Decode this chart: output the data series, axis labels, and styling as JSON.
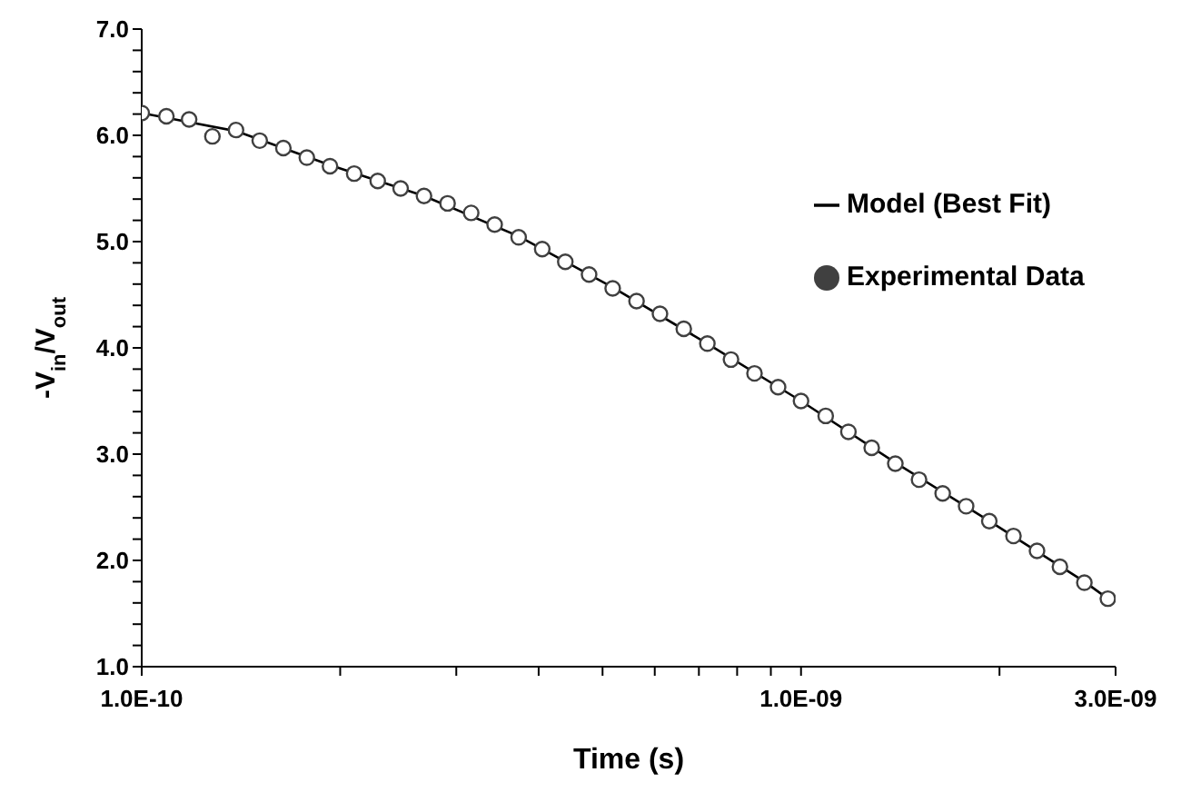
{
  "chart_data": {
    "type": "scatter",
    "xlabel": "Time (s)",
    "ylabel": "-V$_{in}$/V$_{out}$",
    "log": "x",
    "legend": "right",
    "grid": false,
    "marker": "circle",
    "xlim": [
      1e-10,
      3e-09
    ],
    "xticks": [
      {
        "value": 1e-10,
        "label": "1.0E-10"
      },
      {
        "value": 2e-10,
        "label": null
      },
      {
        "value": 3e-10,
        "label": null
      },
      {
        "value": 4e-10,
        "label": null
      },
      {
        "value": 5e-10,
        "label": null
      },
      {
        "value": 6e-10,
        "label": null
      },
      {
        "value": 7e-10,
        "label": null
      },
      {
        "value": 8e-10,
        "label": null
      },
      {
        "value": 9e-10,
        "label": null
      },
      {
        "value": 1e-09,
        "label": "1.0E-09"
      },
      {
        "value": 2e-09,
        "label": null
      },
      {
        "value": 3e-09,
        "label": "3.0E-09"
      }
    ],
    "ylim": [
      1,
      7
    ],
    "yticks": [
      {
        "value": 1,
        "label": "1.0"
      },
      {
        "value": 1.2,
        "label": null
      },
      {
        "value": 1.4,
        "label": null
      },
      {
        "value": 1.6,
        "label": null
      },
      {
        "value": 1.8,
        "label": null
      },
      {
        "value": 2,
        "label": "2.0"
      },
      {
        "value": 2.2,
        "label": null
      },
      {
        "value": 2.4,
        "label": null
      },
      {
        "value": 2.6,
        "label": null
      },
      {
        "value": 2.8,
        "label": null
      },
      {
        "value": 3,
        "label": "3.0"
      },
      {
        "value": 3.2,
        "label": null
      },
      {
        "value": 3.4,
        "label": null
      },
      {
        "value": 3.6,
        "label": null
      },
      {
        "value": 3.8,
        "label": null
      },
      {
        "value": 4,
        "label": "4.0"
      },
      {
        "value": 4.2,
        "label": null
      },
      {
        "value": 4.4,
        "label": null
      },
      {
        "value": 4.6,
        "label": null
      },
      {
        "value": 4.8,
        "label": null
      },
      {
        "value": 5,
        "label": "5.0"
      },
      {
        "value": 5.2,
        "label": null
      },
      {
        "value": 5.4,
        "label": null
      },
      {
        "value": 5.6,
        "label": null
      },
      {
        "value": 5.8,
        "label": null
      },
      {
        "value": 6,
        "label": "6.0"
      },
      {
        "value": 6.2,
        "label": null
      },
      {
        "value": 6.4,
        "label": null
      },
      {
        "value": 6.6,
        "label": null
      },
      {
        "value": 6.8,
        "label": null
      },
      {
        "value": 7,
        "label": "7.0"
      }
    ],
    "series": [
      {
        "name": "Model (Best Fit)",
        "type": "line",
        "marker": "none",
        "line_style": "solid",
        "color": "#000000",
        "x": [
          1e-10,
          1.39e-10,
          1.93e-10,
          2.68e-10,
          3.73e-10,
          5.18e-10,
          7.21e-10,
          1e-09,
          1.39e-09,
          1.93e-09,
          2.69e-09,
          2.92e-09
        ],
        "values": [
          6.21,
          6.04,
          5.72,
          5.43,
          5.05,
          4.57,
          4.04,
          3.5,
          2.92,
          2.37,
          1.8,
          1.64
        ]
      },
      {
        "name": "Experimental Data",
        "color": "#404040",
        "x": [
          1e-10,
          1.09e-10,
          1.18e-10,
          1.28e-10,
          1.39e-10,
          1.51e-10,
          1.64e-10,
          1.78e-10,
          1.93e-10,
          2.1e-10,
          2.28e-10,
          2.47e-10,
          2.68e-10,
          2.91e-10,
          3.16e-10,
          3.43e-10,
          3.73e-10,
          4.05e-10,
          4.39e-10,
          4.77e-10,
          5.18e-10,
          5.63e-10,
          6.11e-10,
          6.64e-10,
          7.21e-10,
          7.83e-10,
          8.5e-10,
          9.23e-10,
          1e-09,
          1.09e-09,
          1.18e-09,
          1.28e-09,
          1.39e-09,
          1.51e-09,
          1.64e-09,
          1.78e-09,
          1.93e-09,
          2.1e-09,
          2.28e-09,
          2.47e-09,
          2.69e-09,
          2.92e-09
        ],
        "values": [
          6.21,
          6.18,
          6.15,
          5.99,
          6.05,
          5.95,
          5.88,
          5.79,
          5.71,
          5.64,
          5.57,
          5.5,
          5.43,
          5.36,
          5.27,
          5.16,
          5.04,
          4.93,
          4.81,
          4.69,
          4.56,
          4.44,
          4.32,
          4.18,
          4.04,
          3.89,
          3.76,
          3.63,
          3.5,
          3.36,
          3.21,
          3.06,
          2.91,
          2.76,
          2.63,
          2.51,
          2.37,
          2.23,
          2.09,
          1.94,
          1.79,
          1.64
        ]
      }
    ]
  }
}
